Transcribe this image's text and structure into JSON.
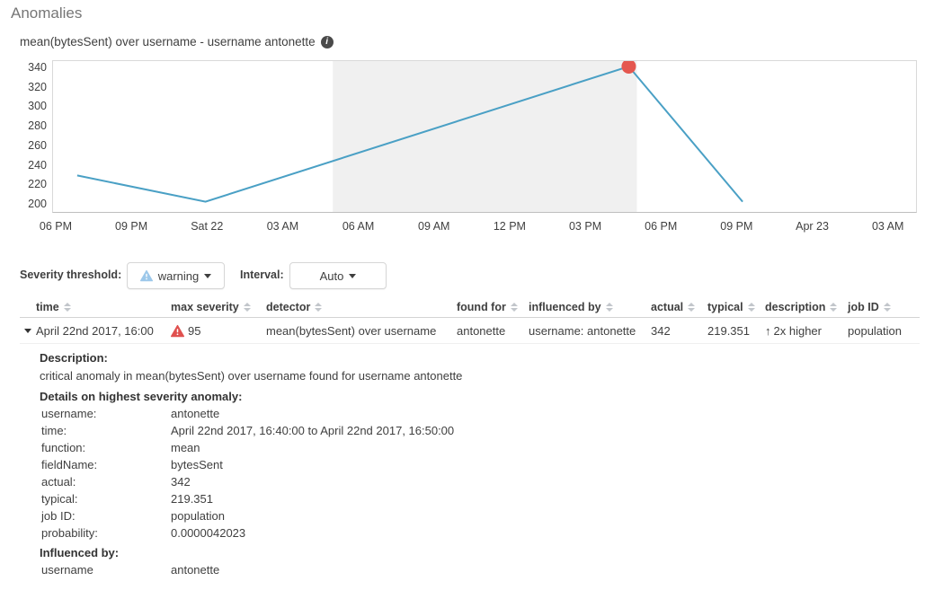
{
  "page": {
    "title": "Anomalies"
  },
  "chart": {
    "subtitle": "mean(bytesSent) over username - username antonette",
    "info_icon_glyph": "i"
  },
  "chart_data": {
    "type": "line",
    "title": "mean(bytesSent) over username - username antonette",
    "x_tick_labels": [
      "06 PM",
      "09 PM",
      "Sat 22",
      "03 AM",
      "06 AM",
      "09 AM",
      "12 PM",
      "03 PM",
      "06 PM",
      "09 PM",
      "Apr 23",
      "03 AM"
    ],
    "x_tick_positions": [
      0,
      1,
      2,
      3,
      4,
      5,
      6,
      7,
      8,
      9,
      10,
      11
    ],
    "x_range": [
      -0.047,
      11.36
    ],
    "y_ticks": [
      340,
      320,
      300,
      280,
      260,
      240,
      220,
      200
    ],
    "y_range": [
      192.5,
      347.5
    ],
    "grid": false,
    "legend": false,
    "series": [
      {
        "name": "mean(bytesSent)",
        "points": [
          [
            0.273,
            230
          ],
          [
            1.968,
            203
          ],
          [
            7.563,
            342
          ],
          [
            9.068,
            203
          ]
        ]
      }
    ],
    "anomaly_marker": {
      "x": 7.563,
      "y": 342,
      "severity": "critical",
      "actual": 342
    },
    "selection_band": {
      "x_start": 3.651,
      "x_end": 7.67
    }
  },
  "controls": {
    "severity_label": "Severity threshold:",
    "severity_value": "warning",
    "interval_label": "Interval:",
    "interval_value": "Auto"
  },
  "table": {
    "headers": [
      "time",
      "max severity",
      "detector",
      "found for",
      "influenced by",
      "actual",
      "typical",
      "description",
      "job ID"
    ],
    "row": {
      "time": "April 22nd 2017, 16:00",
      "max_severity": "95",
      "detector": "mean(bytesSent) over username",
      "found_for": "antonette",
      "influenced_by": "username: antonette",
      "actual": "342",
      "typical": "219.351",
      "description": "2x higher",
      "job_id": "population"
    }
  },
  "details": {
    "description_heading": "Description:",
    "description_text": "critical anomaly in mean(bytesSent) over username found for username antonette",
    "details_heading": "Details on highest severity anomaly:",
    "rows": [
      {
        "label": "username:",
        "value": "antonette"
      },
      {
        "label": "time:",
        "value": "April 22nd 2017, 16:40:00 to April 22nd 2017, 16:50:00"
      },
      {
        "label": "function:",
        "value": "mean"
      },
      {
        "label": "fieldName:",
        "value": "bytesSent"
      },
      {
        "label": "actual:",
        "value": "342"
      },
      {
        "label": "typical:",
        "value": "219.351"
      },
      {
        "label": "job ID:",
        "value": "population"
      },
      {
        "label": "probability:",
        "value": "0.0000042023"
      }
    ],
    "influenced_heading": "Influenced by:",
    "influenced_rows": [
      {
        "label": "username",
        "value": "antonette"
      }
    ]
  },
  "icons": {
    "arrow_up": "↑",
    "caret_down": "css-triangle-down",
    "expander": "css-triangle-down",
    "sort": "css-double-triangle",
    "warning_triangle": "svg-triangle-exclamation",
    "info": "circle-i"
  },
  "colors": {
    "line": "#4aa0c5",
    "anomaly_dot": "#e4574f",
    "selection_band": "#f0f0f0",
    "chart_border": "#d9d9d9",
    "axis_line": "#bfbfbf",
    "warning_blue": "#9dc8ea",
    "critical_red": "#e0514f",
    "text": "#3f3f3f",
    "title_gray": "#767676",
    "sort_gray": "#c2c6cb"
  }
}
